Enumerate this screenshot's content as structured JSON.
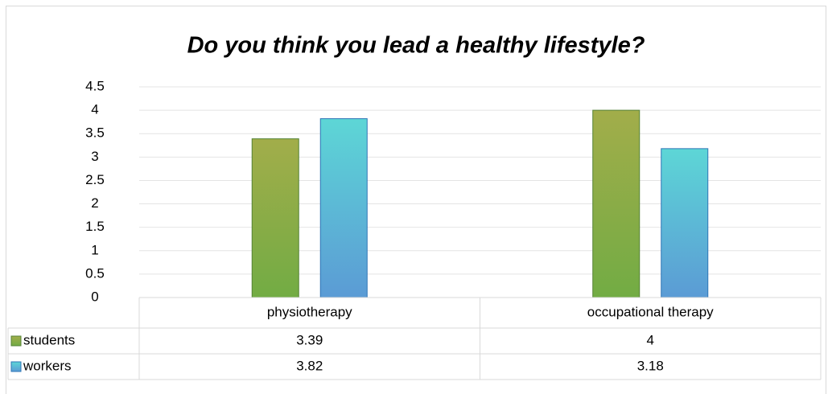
{
  "chart_data": {
    "type": "bar",
    "title": "Do you think you lead a healthy lifestyle?",
    "categories": [
      "physiotherapy",
      "occupational therapy"
    ],
    "series": [
      {
        "name": "students",
        "color": "#72ac44",
        "values": [
          3.39,
          4
        ]
      },
      {
        "name": "workers",
        "color": "#5b9bd5",
        "values": [
          3.82,
          3.18
        ]
      }
    ],
    "ylim": [
      0,
      4.5
    ],
    "yticks": [
      0,
      0.5,
      1,
      1.5,
      2,
      2.5,
      3,
      3.5,
      4,
      4.5
    ],
    "grid": true,
    "data_table": true
  }
}
